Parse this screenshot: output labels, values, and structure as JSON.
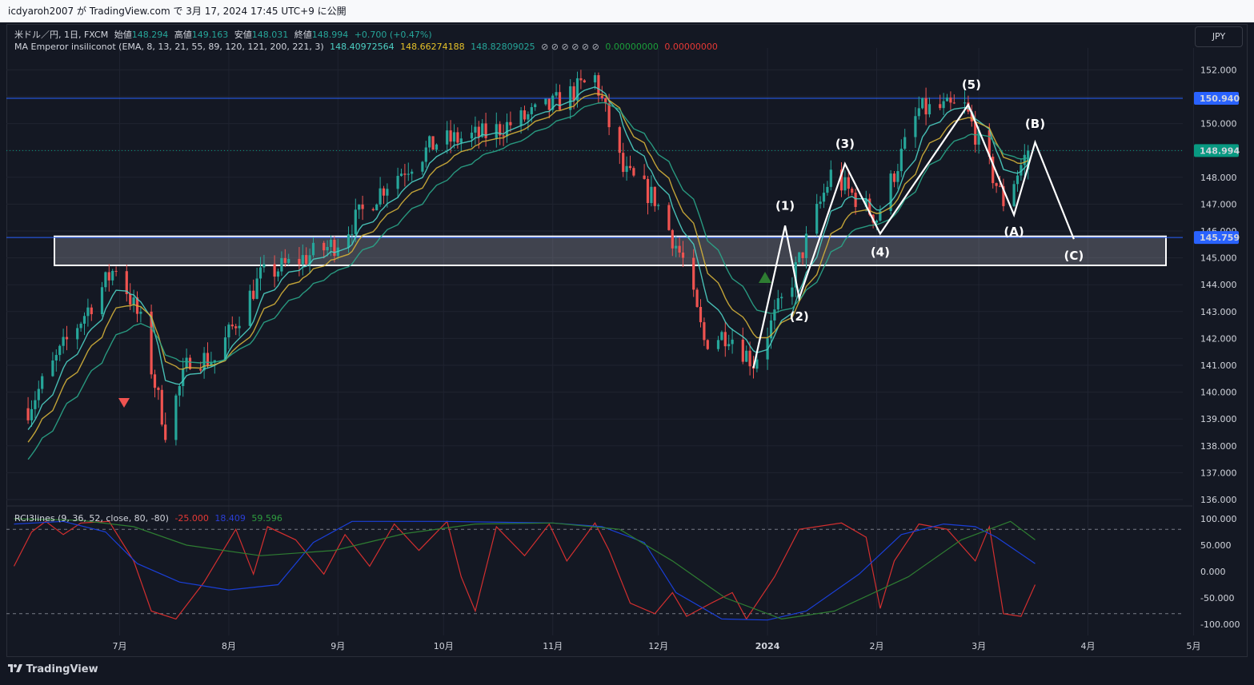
{
  "header": {
    "publish_line": "icdyaroh2007 が TradingView.com で 3月 17, 2024 17:45 UTC+9 に公開"
  },
  "symbol": {
    "pair": "米ドル／円, 1日, FXCM",
    "o_label": "始値",
    "o": "148.294",
    "h_label": "高値",
    "h": "149.163",
    "l_label": "安値",
    "l": "148.031",
    "c_label": "終値",
    "c": "148.994",
    "change": "+0.700 (+0.47%)"
  },
  "ma_legend": {
    "name": "MA Emperor insiliconot (EMA, 8, 13, 21, 55, 89, 120, 121, 200, 221, 3)",
    "v1": "148.40972564",
    "v2": "148.66274188",
    "v3": "148.82809025",
    "blanks": "⊘ ⊘ ⊘ ⊘ ⊘ ⊘",
    "v4": "0.00000000",
    "v5": "0.00000000"
  },
  "rci_legend": {
    "name": "RCI3lines (9, 36, 52, close, 80, -80)",
    "v1": "-25.000",
    "v2": "18.409",
    "v3": "59.596"
  },
  "currency_button": "JPY",
  "footer": {
    "brand": "TradingView"
  },
  "colors": {
    "up": "#26a69a",
    "down": "#ef5350",
    "ema_fast": "#4dd0c4",
    "ema_mid": "#d4b13a",
    "ema_slow": "#2aa68a",
    "resistance": "#2962ff",
    "rci_short": "#d32f2f",
    "rci_mid": "#1a3fd8",
    "rci_long": "#2e7d32"
  },
  "chart_data": [
    {
      "type": "candlestick",
      "title": "米ドル／円, 1日, FXCM",
      "y_axis": {
        "ticks": [
          "136.000",
          "137.000",
          "138.000",
          "139.000",
          "140.000",
          "141.000",
          "142.000",
          "143.000",
          "144.000",
          "145.000",
          "146.000",
          "147.000",
          "148.000",
          "149.000",
          "150.000",
          "151.000",
          "152.000"
        ],
        "ylim": [
          135.6,
          152.4
        ]
      },
      "x_axis": {
        "ticks": [
          "7月",
          "8月",
          "9月",
          "10月",
          "11月",
          "12月",
          "2024",
          "2月",
          "3月",
          "4月",
          "5月"
        ]
      },
      "price_labels": [
        {
          "label": "150.940",
          "value": 150.94,
          "color": "#2962ff"
        },
        {
          "label": "148.994",
          "value": 148.994,
          "color": "#089981"
        },
        {
          "label": "145.759",
          "value": 145.759,
          "color": "#2962ff"
        }
      ],
      "horizontal_lines": [
        {
          "value": 150.94
        },
        {
          "value": 145.759
        }
      ],
      "support_zone": {
        "from": 144.72,
        "to": 145.8
      },
      "close_path": [
        {
          "date": "2023-06-05",
          "close": 139.4
        },
        {
          "date": "2023-06-16",
          "close": 141.9
        },
        {
          "date": "2023-06-30",
          "close": 144.7
        },
        {
          "date": "2023-07-07",
          "close": 142.6
        },
        {
          "date": "2023-07-14",
          "close": 138.6
        },
        {
          "date": "2023-07-21",
          "close": 141.3
        },
        {
          "date": "2023-07-28",
          "close": 141.2
        },
        {
          "date": "2023-08-10",
          "close": 144.3
        },
        {
          "date": "2023-08-31",
          "close": 145.5
        },
        {
          "date": "2023-09-15",
          "close": 147.8
        },
        {
          "date": "2023-09-29",
          "close": 149.3
        },
        {
          "date": "2023-10-13",
          "close": 149.6
        },
        {
          "date": "2023-10-31",
          "close": 150.6
        },
        {
          "date": "2023-11-13",
          "close": 151.7
        },
        {
          "date": "2023-11-21",
          "close": 148.2
        },
        {
          "date": "2023-11-30",
          "close": 147.2
        },
        {
          "date": "2023-12-08",
          "close": 144.9
        },
        {
          "date": "2023-12-14",
          "close": 141.9
        },
        {
          "date": "2023-12-21",
          "close": 142.2
        },
        {
          "date": "2023-12-28",
          "close": 141.1
        },
        {
          "date": "2024-01-08",
          "close": 144.2
        },
        {
          "date": "2024-01-19",
          "close": 148.1
        },
        {
          "date": "2024-02-01",
          "close": 146.5
        },
        {
          "date": "2024-02-13",
          "close": 150.5
        },
        {
          "date": "2024-02-26",
          "close": 150.6
        },
        {
          "date": "2024-03-08",
          "close": 147.1
        },
        {
          "date": "2024-03-15",
          "close": 148.994
        }
      ],
      "ema_lines": [
        {
          "name": "148.40972564",
          "offset": -0.45
        },
        {
          "name": "148.66274188",
          "offset": -0.95
        },
        {
          "name": "148.82809025",
          "offset": -1.6
        }
      ],
      "elliott_wave": [
        {
          "label": "",
          "date": "2023-12-28",
          "price": 140.9
        },
        {
          "label": "(1)",
          "date": "2024-01-06",
          "price": 146.2
        },
        {
          "label": "(2)",
          "date": "2024-01-10",
          "price": 143.5
        },
        {
          "label": "(3)",
          "date": "2024-01-23",
          "price": 148.5
        },
        {
          "label": "(4)",
          "date": "2024-02-02",
          "price": 145.9
        },
        {
          "label": "(5)",
          "date": "2024-02-27",
          "price": 150.7
        },
        {
          "label": "(A)",
          "date": "2024-03-11",
          "price": 146.6
        },
        {
          "label": "(B)",
          "date": "2024-03-17",
          "price": 149.3
        },
        {
          "label": "(C)",
          "date": "2024-03-28",
          "price": 145.7
        }
      ]
    },
    {
      "type": "line",
      "title": "RCI3lines (9, 36, 52, close, 80, -80)",
      "y_axis": {
        "ticks": [
          "100.000",
          "50.000",
          "0.000",
          "-50.000",
          "-100.000"
        ],
        "ylim": [
          -110,
          110
        ]
      },
      "levels": [
        80,
        -80
      ],
      "series": [
        {
          "name": "-25.000",
          "points": [
            [
              "2023-06-01",
              10
            ],
            [
              "2023-06-06",
              75
            ],
            [
              "2023-06-10",
              95
            ],
            [
              "2023-06-15",
              70
            ],
            [
              "2023-06-20",
              92
            ],
            [
              "2023-06-28",
              95
            ],
            [
              "2023-07-05",
              20
            ],
            [
              "2023-07-10",
              -75
            ],
            [
              "2023-07-17",
              -90
            ],
            [
              "2023-07-25",
              -20
            ],
            [
              "2023-08-03",
              80
            ],
            [
              "2023-08-08",
              -5
            ],
            [
              "2023-08-12",
              85
            ],
            [
              "2023-08-20",
              60
            ],
            [
              "2023-08-28",
              -5
            ],
            [
              "2023-09-03",
              70
            ],
            [
              "2023-09-10",
              10
            ],
            [
              "2023-09-17",
              90
            ],
            [
              "2023-09-24",
              40
            ],
            [
              "2023-10-02",
              95
            ],
            [
              "2023-10-06",
              -10
            ],
            [
              "2023-10-10",
              -75
            ],
            [
              "2023-10-16",
              85
            ],
            [
              "2023-10-24",
              30
            ],
            [
              "2023-10-31",
              90
            ],
            [
              "2023-11-05",
              20
            ],
            [
              "2023-11-13",
              92
            ],
            [
              "2023-11-17",
              40
            ],
            [
              "2023-11-23",
              -60
            ],
            [
              "2023-11-30",
              -80
            ],
            [
              "2023-12-05",
              -40
            ],
            [
              "2023-12-09",
              -85
            ],
            [
              "2023-12-16",
              -60
            ],
            [
              "2023-12-22",
              -40
            ],
            [
              "2023-12-26",
              -90
            ],
            [
              "2024-01-03",
              -10
            ],
            [
              "2024-01-10",
              80
            ],
            [
              "2024-01-22",
              92
            ],
            [
              "2024-01-29",
              65
            ],
            [
              "2024-02-02",
              -70
            ],
            [
              "2024-02-06",
              20
            ],
            [
              "2024-02-13",
              90
            ],
            [
              "2024-02-21",
              80
            ],
            [
              "2024-02-29",
              20
            ],
            [
              "2024-03-04",
              85
            ],
            [
              "2024-03-08",
              -80
            ],
            [
              "2024-03-13",
              -85
            ],
            [
              "2024-03-17",
              -25
            ]
          ]
        },
        {
          "name": "18.409",
          "points": [
            [
              "2023-06-01",
              90
            ],
            [
              "2023-06-15",
              95
            ],
            [
              "2023-06-27",
              75
            ],
            [
              "2023-07-06",
              15
            ],
            [
              "2023-07-18",
              -20
            ],
            [
              "2023-08-01",
              -35
            ],
            [
              "2023-08-15",
              -25
            ],
            [
              "2023-08-25",
              55
            ],
            [
              "2023-09-05",
              95
            ],
            [
              "2023-10-01",
              95
            ],
            [
              "2023-11-01",
              92
            ],
            [
              "2023-11-15",
              85
            ],
            [
              "2023-11-27",
              55
            ],
            [
              "2023-12-06",
              -40
            ],
            [
              "2023-12-19",
              -90
            ],
            [
              "2024-01-01",
              -92
            ],
            [
              "2024-01-12",
              -75
            ],
            [
              "2024-01-27",
              -5
            ],
            [
              "2024-02-08",
              70
            ],
            [
              "2024-02-20",
              90
            ],
            [
              "2024-02-29",
              85
            ],
            [
              "2024-03-06",
              65
            ],
            [
              "2024-03-17",
              15
            ]
          ]
        },
        {
          "name": "59.596",
          "points": [
            [
              "2023-06-01",
              100
            ],
            [
              "2023-06-20",
              97
            ],
            [
              "2023-07-05",
              85
            ],
            [
              "2023-07-20",
              50
            ],
            [
              "2023-08-10",
              30
            ],
            [
              "2023-08-31",
              40
            ],
            [
              "2023-09-20",
              72
            ],
            [
              "2023-10-10",
              90
            ],
            [
              "2023-11-01",
              92
            ],
            [
              "2023-11-20",
              80
            ],
            [
              "2023-12-05",
              20
            ],
            [
              "2023-12-20",
              -50
            ],
            [
              "2024-01-05",
              -90
            ],
            [
              "2024-01-20",
              -75
            ],
            [
              "2024-02-10",
              -10
            ],
            [
              "2024-02-25",
              60
            ],
            [
              "2024-03-10",
              95
            ],
            [
              "2024-03-17",
              60
            ]
          ]
        }
      ]
    }
  ]
}
